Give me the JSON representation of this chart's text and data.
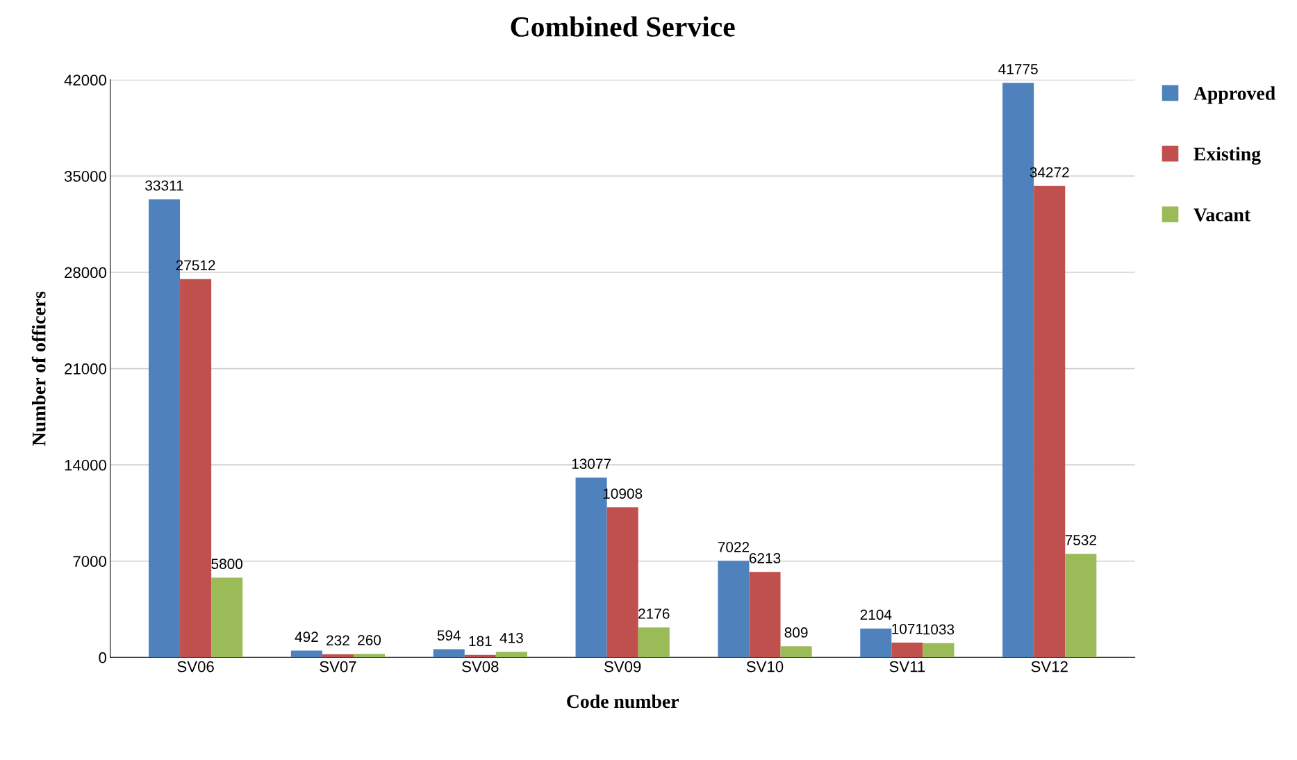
{
  "chart_data": {
    "type": "bar",
    "title": "Combined Service",
    "xlabel": "Code number",
    "ylabel": "Number of officers",
    "categories": [
      "SV06",
      "SV07",
      "SV08",
      "SV09",
      "SV10",
      "SV11",
      "SV12"
    ],
    "series": [
      {
        "name": "Approved",
        "color": "#4f81bd",
        "values": [
          33311,
          492,
          594,
          13077,
          7022,
          2104,
          41775
        ]
      },
      {
        "name": "Existing",
        "color": "#c0504d",
        "values": [
          27512,
          232,
          181,
          10908,
          6213,
          1071,
          34272
        ]
      },
      {
        "name": "Vacant",
        "color": "#9bbb59",
        "values": [
          5800,
          260,
          413,
          2176,
          809,
          1033,
          7532
        ]
      }
    ],
    "ylim": [
      0,
      42000
    ],
    "yticks": [
      0,
      7000,
      14000,
      21000,
      28000,
      35000,
      42000
    ],
    "grid": "y",
    "legend": "right",
    "data_labels": true
  }
}
